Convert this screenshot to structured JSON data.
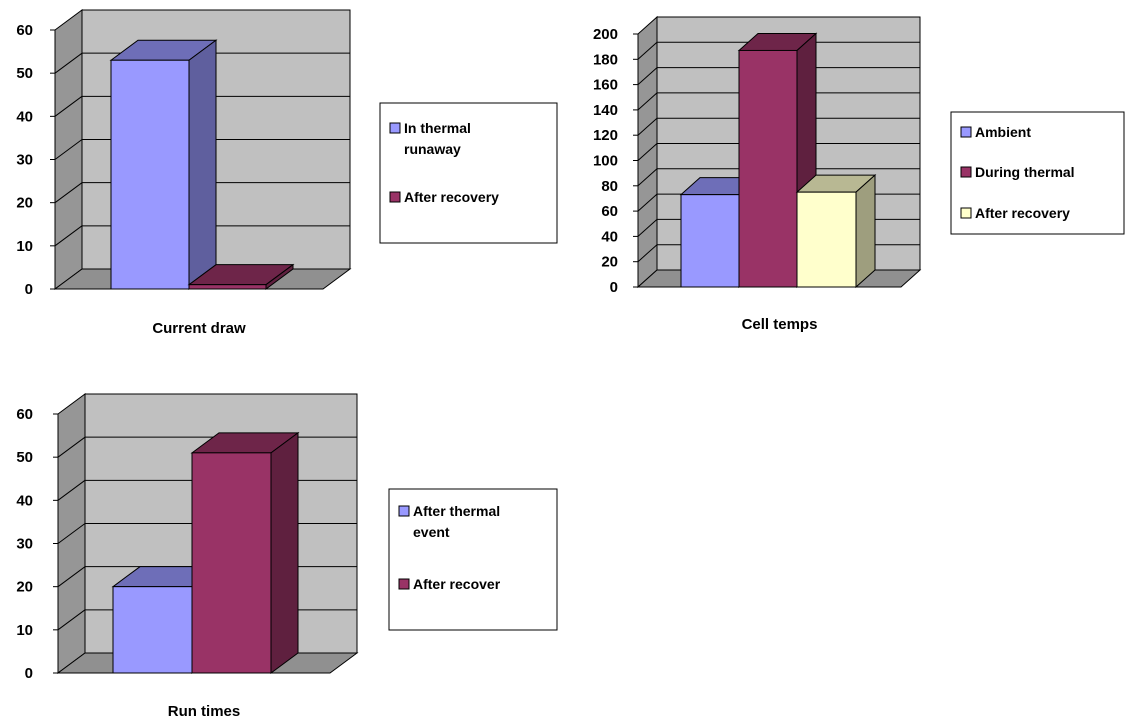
{
  "chart_data": [
    {
      "type": "bar",
      "title": "",
      "xlabel": "Current draw",
      "ylabel": "",
      "ylim": [
        0,
        60
      ],
      "yticks": [
        "0",
        "10",
        "20",
        "30",
        "40",
        "50",
        "60"
      ],
      "grid": true,
      "legend_position": "right",
      "series": [
        {
          "name": "In thermal runaway",
          "legend_lines": [
            "In thermal",
            "runaway"
          ],
          "values": [
            53
          ],
          "color": "#9999ff"
        },
        {
          "name": "After recovery",
          "legend_lines": [
            "After recovery"
          ],
          "values": [
            1
          ],
          "color": "#993366"
        }
      ]
    },
    {
      "type": "bar",
      "title": "",
      "xlabel": "Cell temps",
      "ylabel": "",
      "ylim": [
        0,
        200
      ],
      "yticks": [
        "0",
        "20",
        "40",
        "60",
        "80",
        "100",
        "120",
        "140",
        "160",
        "180",
        "200"
      ],
      "grid": true,
      "legend_position": "right",
      "series": [
        {
          "name": "Ambient",
          "legend_lines": [
            "Ambient"
          ],
          "values": [
            73
          ],
          "color": "#9999ff"
        },
        {
          "name": "During thermal",
          "legend_lines": [
            "During thermal"
          ],
          "values": [
            187
          ],
          "color": "#993366"
        },
        {
          "name": "After recovery",
          "legend_lines": [
            "After recovery"
          ],
          "values": [
            75
          ],
          "color": "#ffffcc"
        }
      ]
    },
    {
      "type": "bar",
      "title": "",
      "xlabel": "Run times",
      "ylabel": "",
      "ylim": [
        0,
        60
      ],
      "yticks": [
        "0",
        "10",
        "20",
        "30",
        "40",
        "50",
        "60"
      ],
      "grid": true,
      "legend_position": "right",
      "series": [
        {
          "name": "After thermal event",
          "legend_lines": [
            "After thermal",
            "event"
          ],
          "values": [
            20
          ],
          "color": "#9999ff"
        },
        {
          "name": "After recover",
          "legend_lines": [
            "After recover"
          ],
          "values": [
            51
          ],
          "color": "#993366"
        }
      ]
    }
  ]
}
